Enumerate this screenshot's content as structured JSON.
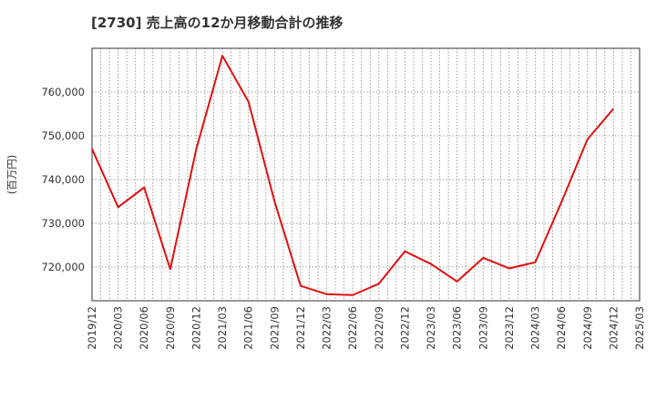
{
  "chart_data": {
    "type": "line",
    "title": "[2730]  売上高の12か月移動合計の推移",
    "ylabel": "(百万円)",
    "xlabel": "",
    "x_ticks": [
      "2019/12",
      "2020/03",
      "2020/06",
      "2020/09",
      "2020/12",
      "2021/03",
      "2021/06",
      "2021/09",
      "2021/12",
      "2022/03",
      "2022/06",
      "2022/09",
      "2022/12",
      "2023/03",
      "2023/06",
      "2023/09",
      "2023/12",
      "2024/03",
      "2024/06",
      "2024/09",
      "2024/12",
      "2025/03"
    ],
    "y_ticks": [
      720000,
      730000,
      740000,
      750000,
      760000
    ],
    "y_tick_labels": [
      "720,000",
      "730,000",
      "740,000",
      "750,000",
      "760,000"
    ],
    "ylim": [
      712300,
      770000
    ],
    "grid": true,
    "series": [
      {
        "name": "売上高の12か月移動合計",
        "color": "#e01010",
        "x": [
          "2019/12",
          "2020/03",
          "2020/06",
          "2020/09",
          "2020/12",
          "2021/03",
          "2021/06",
          "2021/09",
          "2021/12",
          "2022/03",
          "2022/06",
          "2022/09",
          "2022/12",
          "2023/03",
          "2023/06",
          "2023/09",
          "2023/12",
          "2024/03",
          "2024/06",
          "2024/09",
          "2024/12"
        ],
        "values": [
          747000,
          733700,
          738200,
          719500,
          747000,
          768300,
          757800,
          735000,
          715700,
          713800,
          713600,
          716200,
          723600,
          720700,
          716700,
          722100,
          719700,
          721100,
          734800,
          749200,
          756200
        ]
      }
    ]
  }
}
